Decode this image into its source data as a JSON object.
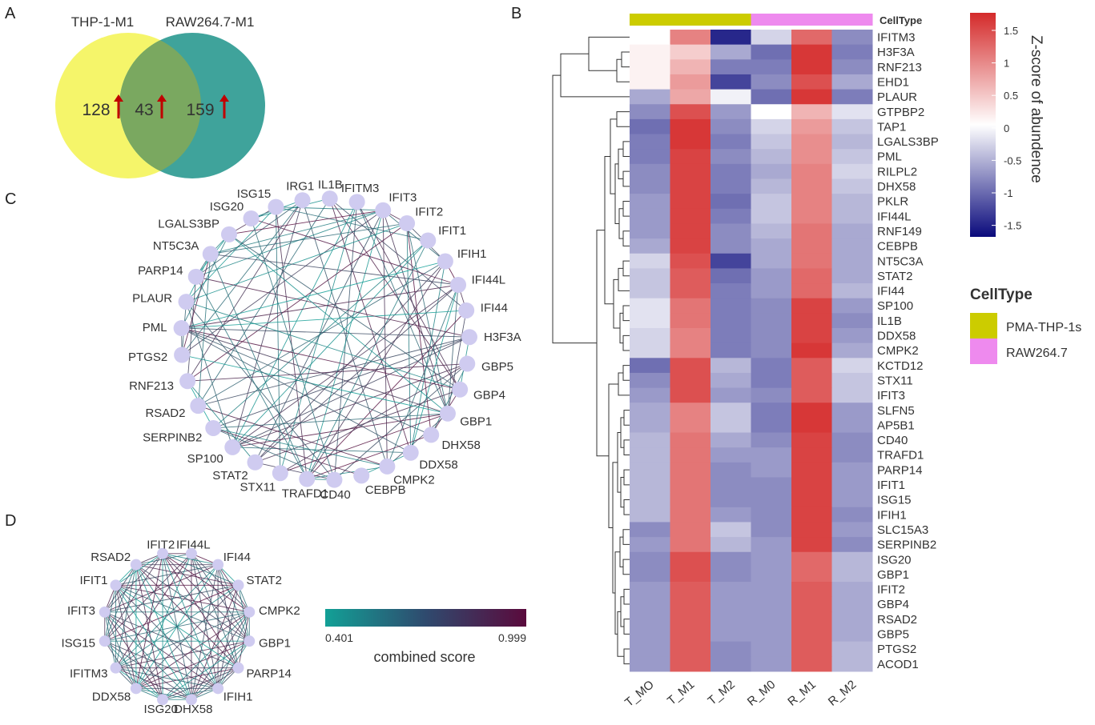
{
  "panels": {
    "a": "A",
    "b": "B",
    "c": "C",
    "d": "D"
  },
  "venn": {
    "set1": "THP-1-M1",
    "set2": "RAW264.7-M1",
    "only1": "128",
    "both": "43",
    "only2": "159",
    "colors": {
      "set1": "#f5f56a",
      "set2": "#3fa39b",
      "overlap": "#7aa860",
      "arrow": "#c00000"
    }
  },
  "network_c": {
    "nodes": [
      "ISG15",
      "IRG1",
      "IL1B",
      "IFITM3",
      "IFIT3",
      "IFIT2",
      "IFIT1",
      "IFIH1",
      "IFI44L",
      "IFI44",
      "H3F3A",
      "GBP5",
      "GBP4",
      "GBP1",
      "DHX58",
      "DDX58",
      "CMPK2",
      "CEBPB",
      "CD40",
      "TRAFD1",
      "STX11",
      "STAT2",
      "SP100",
      "SERPINB2",
      "RSAD2",
      "RNF213",
      "PTGS2",
      "PML",
      "PLAUR",
      "PARP14",
      "NT5C3A",
      "LGALS3BP",
      "ISG20"
    ],
    "node_color": "#cfcbf0"
  },
  "network_d": {
    "nodes": [
      "IFI44L",
      "IFI44",
      "STAT2",
      "CMPK2",
      "GBP1",
      "PARP14",
      "IFIH1",
      "DHX58",
      "ISG20",
      "DDX58",
      "IFITM3",
      "ISG15",
      "IFIT3",
      "IFIT1",
      "RSAD2",
      "IFIT2"
    ],
    "node_color": "#cfcbf0"
  },
  "edge_legend": {
    "title": "combined score",
    "min": "0.401",
    "max": "0.999",
    "low_color": "#12a096",
    "high_color": "#5a0a3c"
  },
  "heatmap": {
    "columns": [
      "T_MO",
      "T_M1",
      "T_M2",
      "R_M0",
      "R_M1",
      "R_M2"
    ],
    "celltype_label": "CellType",
    "annotation": [
      "PMA-THP-1s",
      "PMA-THP-1s",
      "PMA-THP-1s",
      "RAW264.7",
      "RAW264.7",
      "RAW264.7"
    ],
    "rows": [
      "IFITM3",
      "H3F3A",
      "RNF213",
      "EHD1",
      "PLAUR",
      "GTPBP2",
      "TAP1",
      "LGALS3BP",
      "PML",
      "RILPL2",
      "DHX58",
      "PKLR",
      "IFI44L",
      "RNF149",
      "CEBPB",
      "NT5C3A",
      "STAT2",
      "IFI44",
      "SP100",
      "IL1B",
      "DDX58",
      "CMPK2",
      "KCTD12",
      "STX11",
      "IFIT3",
      "SLFN5",
      "AP5B1",
      "CD40",
      "TRAFD1",
      "PARP14",
      "IFIT1",
      "ISG15",
      "IFIH1",
      "SLC15A3",
      "SERPINB2",
      "ISG20",
      "GBP1",
      "IFIT2",
      "GBP4",
      "RSAD2",
      "GBP5",
      "PTGS2",
      "ACOD1"
    ],
    "values": [
      [
        0.0,
        1.0,
        -1.5,
        -0.3,
        1.2,
        -0.8
      ],
      [
        0.1,
        0.4,
        -0.6,
        -1.0,
        1.6,
        -0.9
      ],
      [
        0.1,
        0.6,
        -0.9,
        -0.9,
        1.6,
        -0.8
      ],
      [
        0.1,
        0.8,
        -1.3,
        -0.8,
        1.4,
        -0.6
      ],
      [
        -0.6,
        0.7,
        -0.1,
        -1.0,
        1.6,
        -0.9
      ],
      [
        -0.8,
        1.4,
        -0.7,
        0.0,
        0.6,
        -0.2
      ],
      [
        -1.0,
        1.6,
        -0.8,
        -0.3,
        0.8,
        -0.4
      ],
      [
        -0.9,
        1.6,
        -0.9,
        -0.4,
        0.9,
        -0.5
      ],
      [
        -0.9,
        1.5,
        -0.8,
        -0.5,
        0.9,
        -0.4
      ],
      [
        -0.8,
        1.5,
        -0.9,
        -0.6,
        1.0,
        -0.3
      ],
      [
        -0.8,
        1.5,
        -0.9,
        -0.5,
        1.0,
        -0.4
      ],
      [
        -0.7,
        1.5,
        -1.0,
        -0.4,
        1.0,
        -0.5
      ],
      [
        -0.7,
        1.5,
        -0.9,
        -0.4,
        1.0,
        -0.5
      ],
      [
        -0.7,
        1.5,
        -0.8,
        -0.5,
        1.1,
        -0.6
      ],
      [
        -0.6,
        1.5,
        -0.8,
        -0.6,
        1.1,
        -0.6
      ],
      [
        -0.3,
        1.4,
        -1.3,
        -0.6,
        1.1,
        -0.6
      ],
      [
        -0.4,
        1.3,
        -1.0,
        -0.7,
        1.2,
        -0.6
      ],
      [
        -0.4,
        1.3,
        -0.9,
        -0.7,
        1.2,
        -0.5
      ],
      [
        -0.2,
        1.1,
        -0.9,
        -0.8,
        1.5,
        -0.7
      ],
      [
        -0.2,
        1.1,
        -0.9,
        -0.8,
        1.5,
        -0.8
      ],
      [
        -0.3,
        1.0,
        -0.9,
        -0.8,
        1.5,
        -0.7
      ],
      [
        -0.3,
        1.0,
        -0.9,
        -0.8,
        1.6,
        -0.6
      ],
      [
        -1.0,
        1.4,
        -0.5,
        -0.9,
        1.3,
        -0.3
      ],
      [
        -0.8,
        1.4,
        -0.6,
        -0.9,
        1.3,
        -0.4
      ],
      [
        -0.7,
        1.4,
        -0.7,
        -0.8,
        1.3,
        -0.4
      ],
      [
        -0.6,
        1.0,
        -0.4,
        -0.9,
        1.6,
        -0.7
      ],
      [
        -0.6,
        1.0,
        -0.4,
        -0.9,
        1.6,
        -0.7
      ],
      [
        -0.5,
        1.1,
        -0.6,
        -0.8,
        1.5,
        -0.8
      ],
      [
        -0.5,
        1.1,
        -0.7,
        -0.7,
        1.5,
        -0.8
      ],
      [
        -0.5,
        1.1,
        -0.8,
        -0.7,
        1.5,
        -0.7
      ],
      [
        -0.5,
        1.1,
        -0.8,
        -0.8,
        1.5,
        -0.7
      ],
      [
        -0.5,
        1.1,
        -0.8,
        -0.8,
        1.5,
        -0.7
      ],
      [
        -0.5,
        1.1,
        -0.7,
        -0.8,
        1.5,
        -0.8
      ],
      [
        -0.8,
        1.1,
        -0.4,
        -0.8,
        1.5,
        -0.7
      ],
      [
        -0.7,
        1.1,
        -0.5,
        -0.7,
        1.5,
        -0.8
      ],
      [
        -0.8,
        1.4,
        -0.8,
        -0.7,
        1.2,
        -0.5
      ],
      [
        -0.8,
        1.4,
        -0.8,
        -0.7,
        1.2,
        -0.5
      ],
      [
        -0.7,
        1.3,
        -0.7,
        -0.7,
        1.3,
        -0.6
      ],
      [
        -0.7,
        1.3,
        -0.7,
        -0.7,
        1.3,
        -0.6
      ],
      [
        -0.7,
        1.3,
        -0.7,
        -0.7,
        1.3,
        -0.6
      ],
      [
        -0.7,
        1.3,
        -0.7,
        -0.7,
        1.3,
        -0.6
      ],
      [
        -0.7,
        1.3,
        -0.8,
        -0.7,
        1.3,
        -0.5
      ],
      [
        -0.7,
        1.3,
        -0.8,
        -0.7,
        1.3,
        -0.5
      ]
    ],
    "scale_title": "Z-score of abundence",
    "scale_ticks": [
      "1.5",
      "1",
      "0.5",
      "0",
      "-0.5",
      "-1",
      "-1.5"
    ],
    "legend_title": "CellType",
    "legend_items": [
      {
        "label": "PMA-THP-1s",
        "color": "#cccc00"
      },
      {
        "label": "RAW264.7",
        "color": "#ee8aee"
      }
    ],
    "colors": {
      "low": "#0a0a7c",
      "mid": "#ffffff",
      "high": "#d42a2a"
    }
  }
}
